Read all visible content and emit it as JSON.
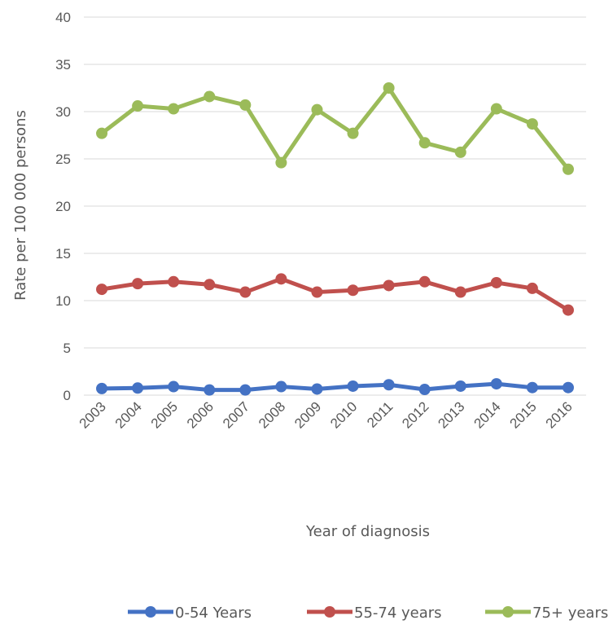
{
  "chart_data": {
    "type": "line",
    "x": [
      "2003",
      "2004",
      "2005",
      "2006",
      "2007",
      "2008",
      "2009",
      "2010",
      "2011",
      "2012",
      "2013",
      "2014",
      "2015",
      "2016"
    ],
    "xlabel": "Year of diagnosis",
    "ylabel": "Rate per 100 000 persons",
    "ylim": [
      0,
      40
    ],
    "yticks": [
      0,
      5,
      10,
      15,
      20,
      25,
      30,
      35,
      40
    ],
    "grid": true,
    "legend_position": "bottom",
    "series": [
      {
        "name": "0-54 Years",
        "color": "#4472C4",
        "values": [
          0.7,
          0.75,
          0.9,
          0.55,
          0.55,
          0.9,
          0.65,
          0.95,
          1.1,
          0.6,
          0.95,
          1.2,
          0.8,
          0.8
        ]
      },
      {
        "name": "55-74 years",
        "color": "#C0504D",
        "values": [
          11.2,
          11.8,
          12.0,
          11.7,
          10.9,
          12.3,
          10.9,
          11.1,
          11.6,
          12.0,
          10.9,
          11.9,
          11.3,
          9.0
        ]
      },
      {
        "name": "75+ years",
        "color": "#9BBB59",
        "values": [
          27.7,
          30.6,
          30.3,
          31.6,
          30.7,
          24.6,
          30.2,
          27.7,
          32.5,
          26.7,
          25.7,
          30.3,
          28.7,
          23.9
        ]
      }
    ]
  }
}
